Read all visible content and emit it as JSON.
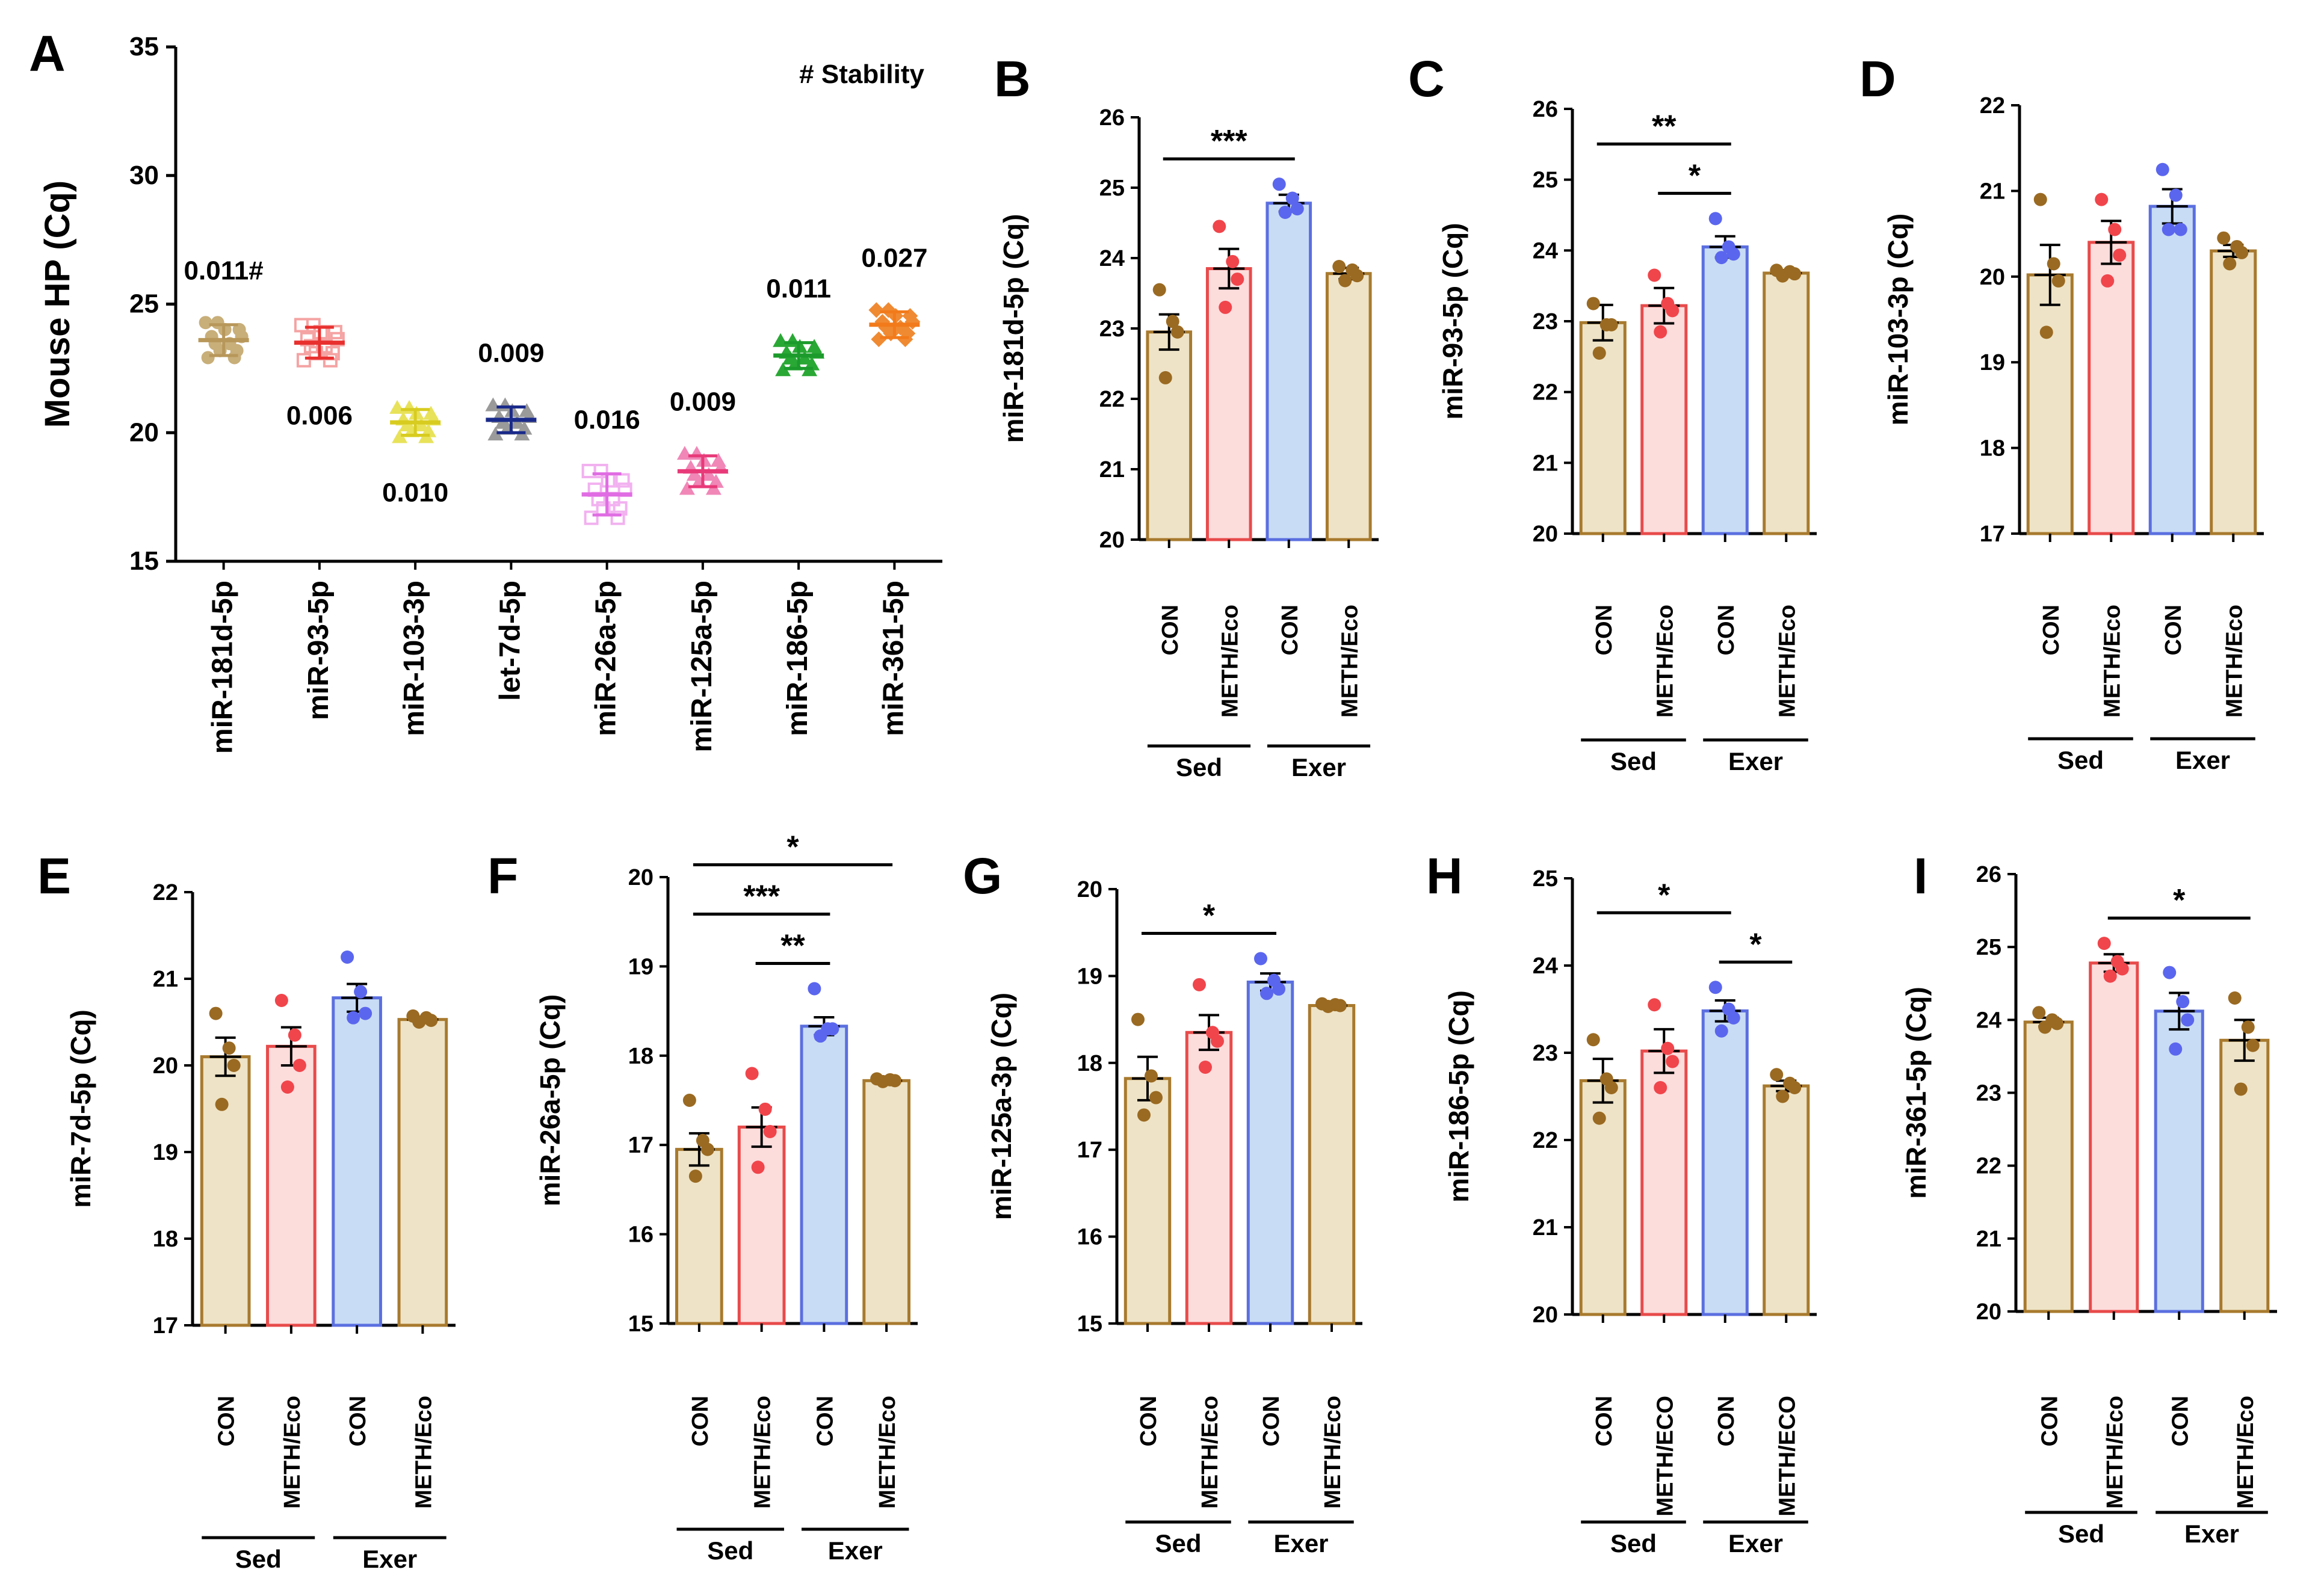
{
  "figure": {
    "legend_note": "# Stability",
    "ytick_step": 1
  },
  "chart_data": [
    {
      "panel": "A",
      "type": "scatter",
      "ylabel": "Mouse HP (Cq)",
      "ylim": [
        15,
        35
      ],
      "yticks": [
        15,
        20,
        25,
        30,
        35
      ],
      "categories": [
        "miR-181d-5p",
        "miR-93-5p",
        "miR-103-3p",
        "let-7d-5p",
        "miR-26a-5p",
        "miR-125a-5p",
        "miR-186-5p",
        "miR-361-5p"
      ],
      "means": [
        23.6,
        23.5,
        20.4,
        20.5,
        17.6,
        18.5,
        23.0,
        24.2
      ],
      "sd": [
        0.6,
        0.6,
        0.5,
        0.5,
        0.8,
        0.6,
        0.5,
        0.5
      ],
      "stability": [
        "0.011#",
        "0.006",
        "0.010",
        "0.009",
        "0.016",
        "0.009",
        "0.011",
        "0.027"
      ],
      "stability_position": [
        "above",
        "below",
        "below",
        "above",
        "above",
        "above",
        "above",
        "above"
      ],
      "colors": [
        "#b8975a",
        "#e8302f",
        "#d8cc20",
        "#1a2a8a",
        "#e06de3",
        "#e83a79",
        "#1c9b2c",
        "#f27a1a"
      ],
      "point_colors": [
        "#c8ae79",
        "#f5a3a3",
        "#e8e25a",
        "#9a9a9a",
        "#f2b1f0",
        "#f087b7",
        "#2aa835",
        "#f08a32"
      ]
    },
    {
      "panel": "B",
      "type": "bar",
      "ylabel": "miR-181d-5p (Cq)",
      "ylim": [
        20,
        26
      ],
      "categories": [
        "CON",
        "METH/Eco",
        "CON",
        "METH/Eco"
      ],
      "groups": [
        "Sed",
        "Exer"
      ],
      "values": [
        22.95,
        23.85,
        24.78,
        23.78
      ],
      "sem": [
        0.25,
        0.28,
        0.12,
        0.08
      ],
      "points": [
        [
          23.55,
          23.1,
          22.95,
          22.3
        ],
        [
          24.45,
          23.95,
          23.7,
          23.3
        ],
        [
          25.05,
          24.85,
          24.7,
          24.65
        ],
        [
          23.88,
          23.83,
          23.75,
          23.68
        ]
      ],
      "significance": [
        {
          "from": 0,
          "to": 2,
          "label": "***"
        }
      ]
    },
    {
      "panel": "C",
      "type": "bar",
      "ylabel": "miR-93-5p (Cq)",
      "ylim": [
        20,
        26
      ],
      "categories": [
        "CON",
        "METH/Eco",
        "CON",
        "METH/Eco"
      ],
      "groups": [
        "Sed",
        "Exer"
      ],
      "values": [
        22.98,
        23.22,
        24.05,
        23.68
      ],
      "sem": [
        0.25,
        0.25,
        0.15,
        0.04
      ],
      "points": [
        [
          23.25,
          22.95,
          22.95,
          22.55
        ],
        [
          23.65,
          23.25,
          23.15,
          22.85
        ],
        [
          24.45,
          24.05,
          23.95,
          23.9
        ],
        [
          23.72,
          23.7,
          23.67,
          23.64
        ]
      ],
      "significance": [
        {
          "from": 0,
          "to": 2,
          "label": "**"
        },
        {
          "from": 1,
          "to": 2,
          "label": "*"
        }
      ]
    },
    {
      "panel": "D",
      "type": "bar",
      "ylabel": "miR-103-3p (Cq)",
      "ylim": [
        17,
        22
      ],
      "categories": [
        "CON",
        "METH/Eco",
        "CON",
        "METH/Eco"
      ],
      "groups": [
        "Sed",
        "Exer"
      ],
      "values": [
        20.02,
        20.4,
        20.82,
        20.3
      ],
      "sem": [
        0.35,
        0.25,
        0.2,
        0.07
      ],
      "points": [
        [
          20.9,
          20.15,
          19.95,
          19.35
        ],
        [
          20.9,
          20.55,
          20.25,
          19.95
        ],
        [
          21.25,
          20.95,
          20.55,
          20.55
        ],
        [
          20.45,
          20.35,
          20.28,
          20.15
        ]
      ],
      "significance": []
    },
    {
      "panel": "E",
      "type": "bar",
      "ylabel": "miR-7d-5p (Cq)",
      "ylim": [
        17,
        22
      ],
      "categories": [
        "CON",
        "METH/Eco",
        "CON",
        "METH/Eco"
      ],
      "groups": [
        "Sed",
        "Exer"
      ],
      "values": [
        20.1,
        20.22,
        20.78,
        20.53
      ],
      "sem": [
        0.22,
        0.22,
        0.16,
        0.03
      ],
      "points": [
        [
          20.6,
          20.2,
          20.0,
          19.55
        ],
        [
          20.75,
          20.35,
          20.0,
          19.75
        ],
        [
          21.25,
          20.85,
          20.6,
          20.55
        ],
        [
          20.57,
          20.55,
          20.52,
          20.5
        ]
      ],
      "significance": []
    },
    {
      "panel": "F",
      "type": "bar",
      "ylabel": "miR-26a-5p (Cq)",
      "ylim": [
        15,
        20
      ],
      "categories": [
        "CON",
        "METH/Eco",
        "CON",
        "METH/Eco"
      ],
      "groups": [
        "Sed",
        "Exer"
      ],
      "values": [
        16.95,
        17.2,
        18.33,
        17.72
      ],
      "sem": [
        0.18,
        0.22,
        0.1,
        0.02
      ],
      "points": [
        [
          17.5,
          17.05,
          16.95,
          16.65
        ],
        [
          17.8,
          17.4,
          17.15,
          16.75
        ],
        [
          18.75,
          18.3,
          18.3,
          18.22
        ],
        [
          17.74,
          17.73,
          17.72,
          17.71
        ]
      ],
      "significance": [
        {
          "from": 0,
          "to": 3,
          "label": "*"
        },
        {
          "from": 0,
          "to": 2,
          "label": "***"
        },
        {
          "from": 1,
          "to": 2,
          "label": "**"
        }
      ]
    },
    {
      "panel": "G",
      "type": "bar",
      "ylabel": "miR-125a-3p (Cq)",
      "ylim": [
        15,
        20
      ],
      "categories": [
        "CON",
        "METH/Eco",
        "CON",
        "METH/Eco"
      ],
      "groups": [
        "Sed",
        "Exer"
      ],
      "values": [
        17.82,
        18.35,
        18.93,
        18.66
      ],
      "sem": [
        0.25,
        0.2,
        0.1,
        0.02
      ],
      "points": [
        [
          18.5,
          17.85,
          17.6,
          17.4
        ],
        [
          18.9,
          18.35,
          18.25,
          17.95
        ],
        [
          19.2,
          18.95,
          18.85,
          18.8
        ],
        [
          18.68,
          18.67,
          18.66,
          18.65
        ]
      ],
      "significance": [
        {
          "from": 0,
          "to": 2,
          "label": "*"
        }
      ]
    },
    {
      "panel": "H",
      "type": "bar",
      "ylabel": "miR-186-5p (Cq)",
      "ylim": [
        20,
        25
      ],
      "categories": [
        "CON",
        "METH/ECO",
        "CON",
        "METH/ECO"
      ],
      "groups": [
        "Sed",
        "Exer"
      ],
      "values": [
        22.68,
        23.02,
        23.48,
        22.62
      ],
      "sem": [
        0.25,
        0.25,
        0.12,
        0.06
      ],
      "points": [
        [
          23.15,
          22.7,
          22.6,
          22.25
        ],
        [
          23.55,
          23.05,
          22.9,
          22.6
        ],
        [
          23.75,
          23.5,
          23.4,
          23.25
        ],
        [
          22.75,
          22.65,
          22.6,
          22.5
        ]
      ],
      "significance": [
        {
          "from": 0,
          "to": 2,
          "label": "*"
        },
        {
          "from": 2,
          "to": 3,
          "label": "*"
        }
      ]
    },
    {
      "panel": "I",
      "type": "bar",
      "ylabel": "miR-361-5p (Cq)",
      "ylim": [
        20,
        26
      ],
      "categories": [
        "CON",
        "METH/Eco",
        "CON",
        "METH/Eco"
      ],
      "groups": [
        "Sed",
        "Exer"
      ],
      "values": [
        23.97,
        24.78,
        24.12,
        23.72
      ],
      "sem": [
        0.06,
        0.12,
        0.25,
        0.28
      ],
      "points": [
        [
          24.1,
          24.0,
          23.95,
          23.9
        ],
        [
          25.05,
          24.8,
          24.7,
          24.6
        ],
        [
          24.65,
          24.25,
          24.0,
          23.6
        ],
        [
          24.3,
          23.9,
          23.65,
          23.05
        ]
      ],
      "significance": [
        {
          "from": 1,
          "to": 3,
          "label": "*"
        }
      ]
    }
  ]
}
